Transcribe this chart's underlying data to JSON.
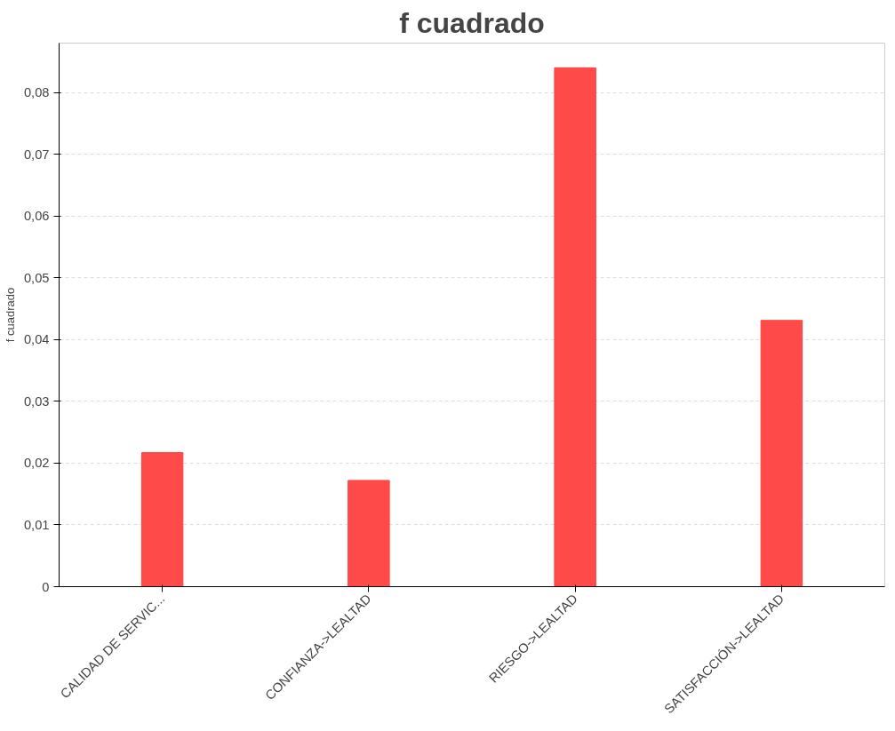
{
  "chart_data": {
    "type": "bar",
    "title": "f cuadrado",
    "ylabel": "f cuadrado",
    "categories": [
      "CALIDAD DE SERVIC...",
      "CONFIANZA->LEALTAD",
      "RIESGO->LEALTAD",
      "SATISFACCIÓN->LEALTAD"
    ],
    "values": [
      0.0217,
      0.0172,
      0.084,
      0.0431
    ],
    "color": "#ff4040",
    "ylim": [
      0,
      0.088
    ],
    "yticks": [
      {
        "value": 0,
        "label": "0"
      },
      {
        "value": 0.01,
        "label": "0,01"
      },
      {
        "value": 0.02,
        "label": "0,02"
      },
      {
        "value": 0.03,
        "label": "0,03"
      },
      {
        "value": 0.04,
        "label": "0,04"
      },
      {
        "value": 0.05,
        "label": "0,05"
      },
      {
        "value": 0.06,
        "label": "0,06"
      },
      {
        "value": 0.07,
        "label": "0,07"
      },
      {
        "value": 0.08,
        "label": "0,08"
      }
    ],
    "grid": "y"
  }
}
